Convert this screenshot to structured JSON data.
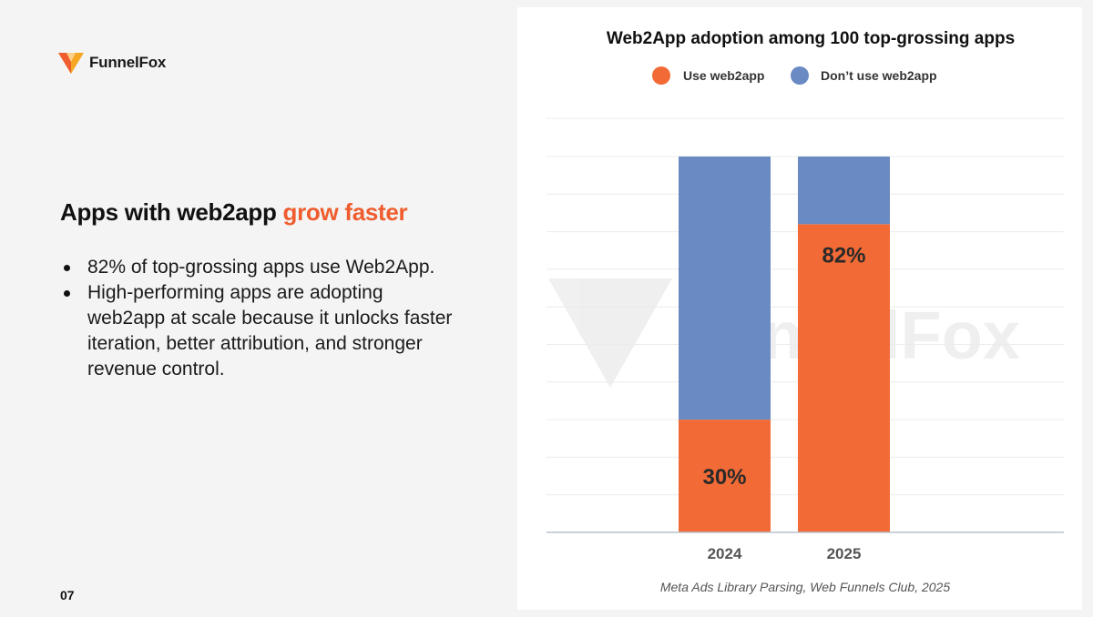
{
  "brand": {
    "name": "FunnelFox",
    "accent_color": "#ef5d2e",
    "logo_icon": "fox-logo-icon"
  },
  "slide": {
    "headline_prefix": "Apps with web2app ",
    "headline_accent": "grow faster",
    "bullets": [
      "82% of top-grossing apps use Web2App.",
      "High-performing apps are adopting web2app at scale because it unlocks faster iteration, better attribution, and stronger revenue control."
    ],
    "page_number": "07"
  },
  "chart_data": {
    "type": "bar",
    "stacked": true,
    "title": "Web2App adoption among 100 top-grossing apps",
    "categories": [
      "2024",
      "2025"
    ],
    "series": [
      {
        "name": "Use web2app",
        "values": [
          30,
          82
        ],
        "color": "#f26a35",
        "labels": [
          "30%",
          "82%"
        ]
      },
      {
        "name": "Don’t use web2app",
        "values": [
          70,
          18
        ],
        "color": "#6a8ac4"
      }
    ],
    "ylim": [
      0,
      100
    ],
    "grid": true,
    "legend_position": "top",
    "source": "Meta Ads Library Parsing, Web Funnels Club, 2025",
    "watermark": "FunnelFox"
  }
}
